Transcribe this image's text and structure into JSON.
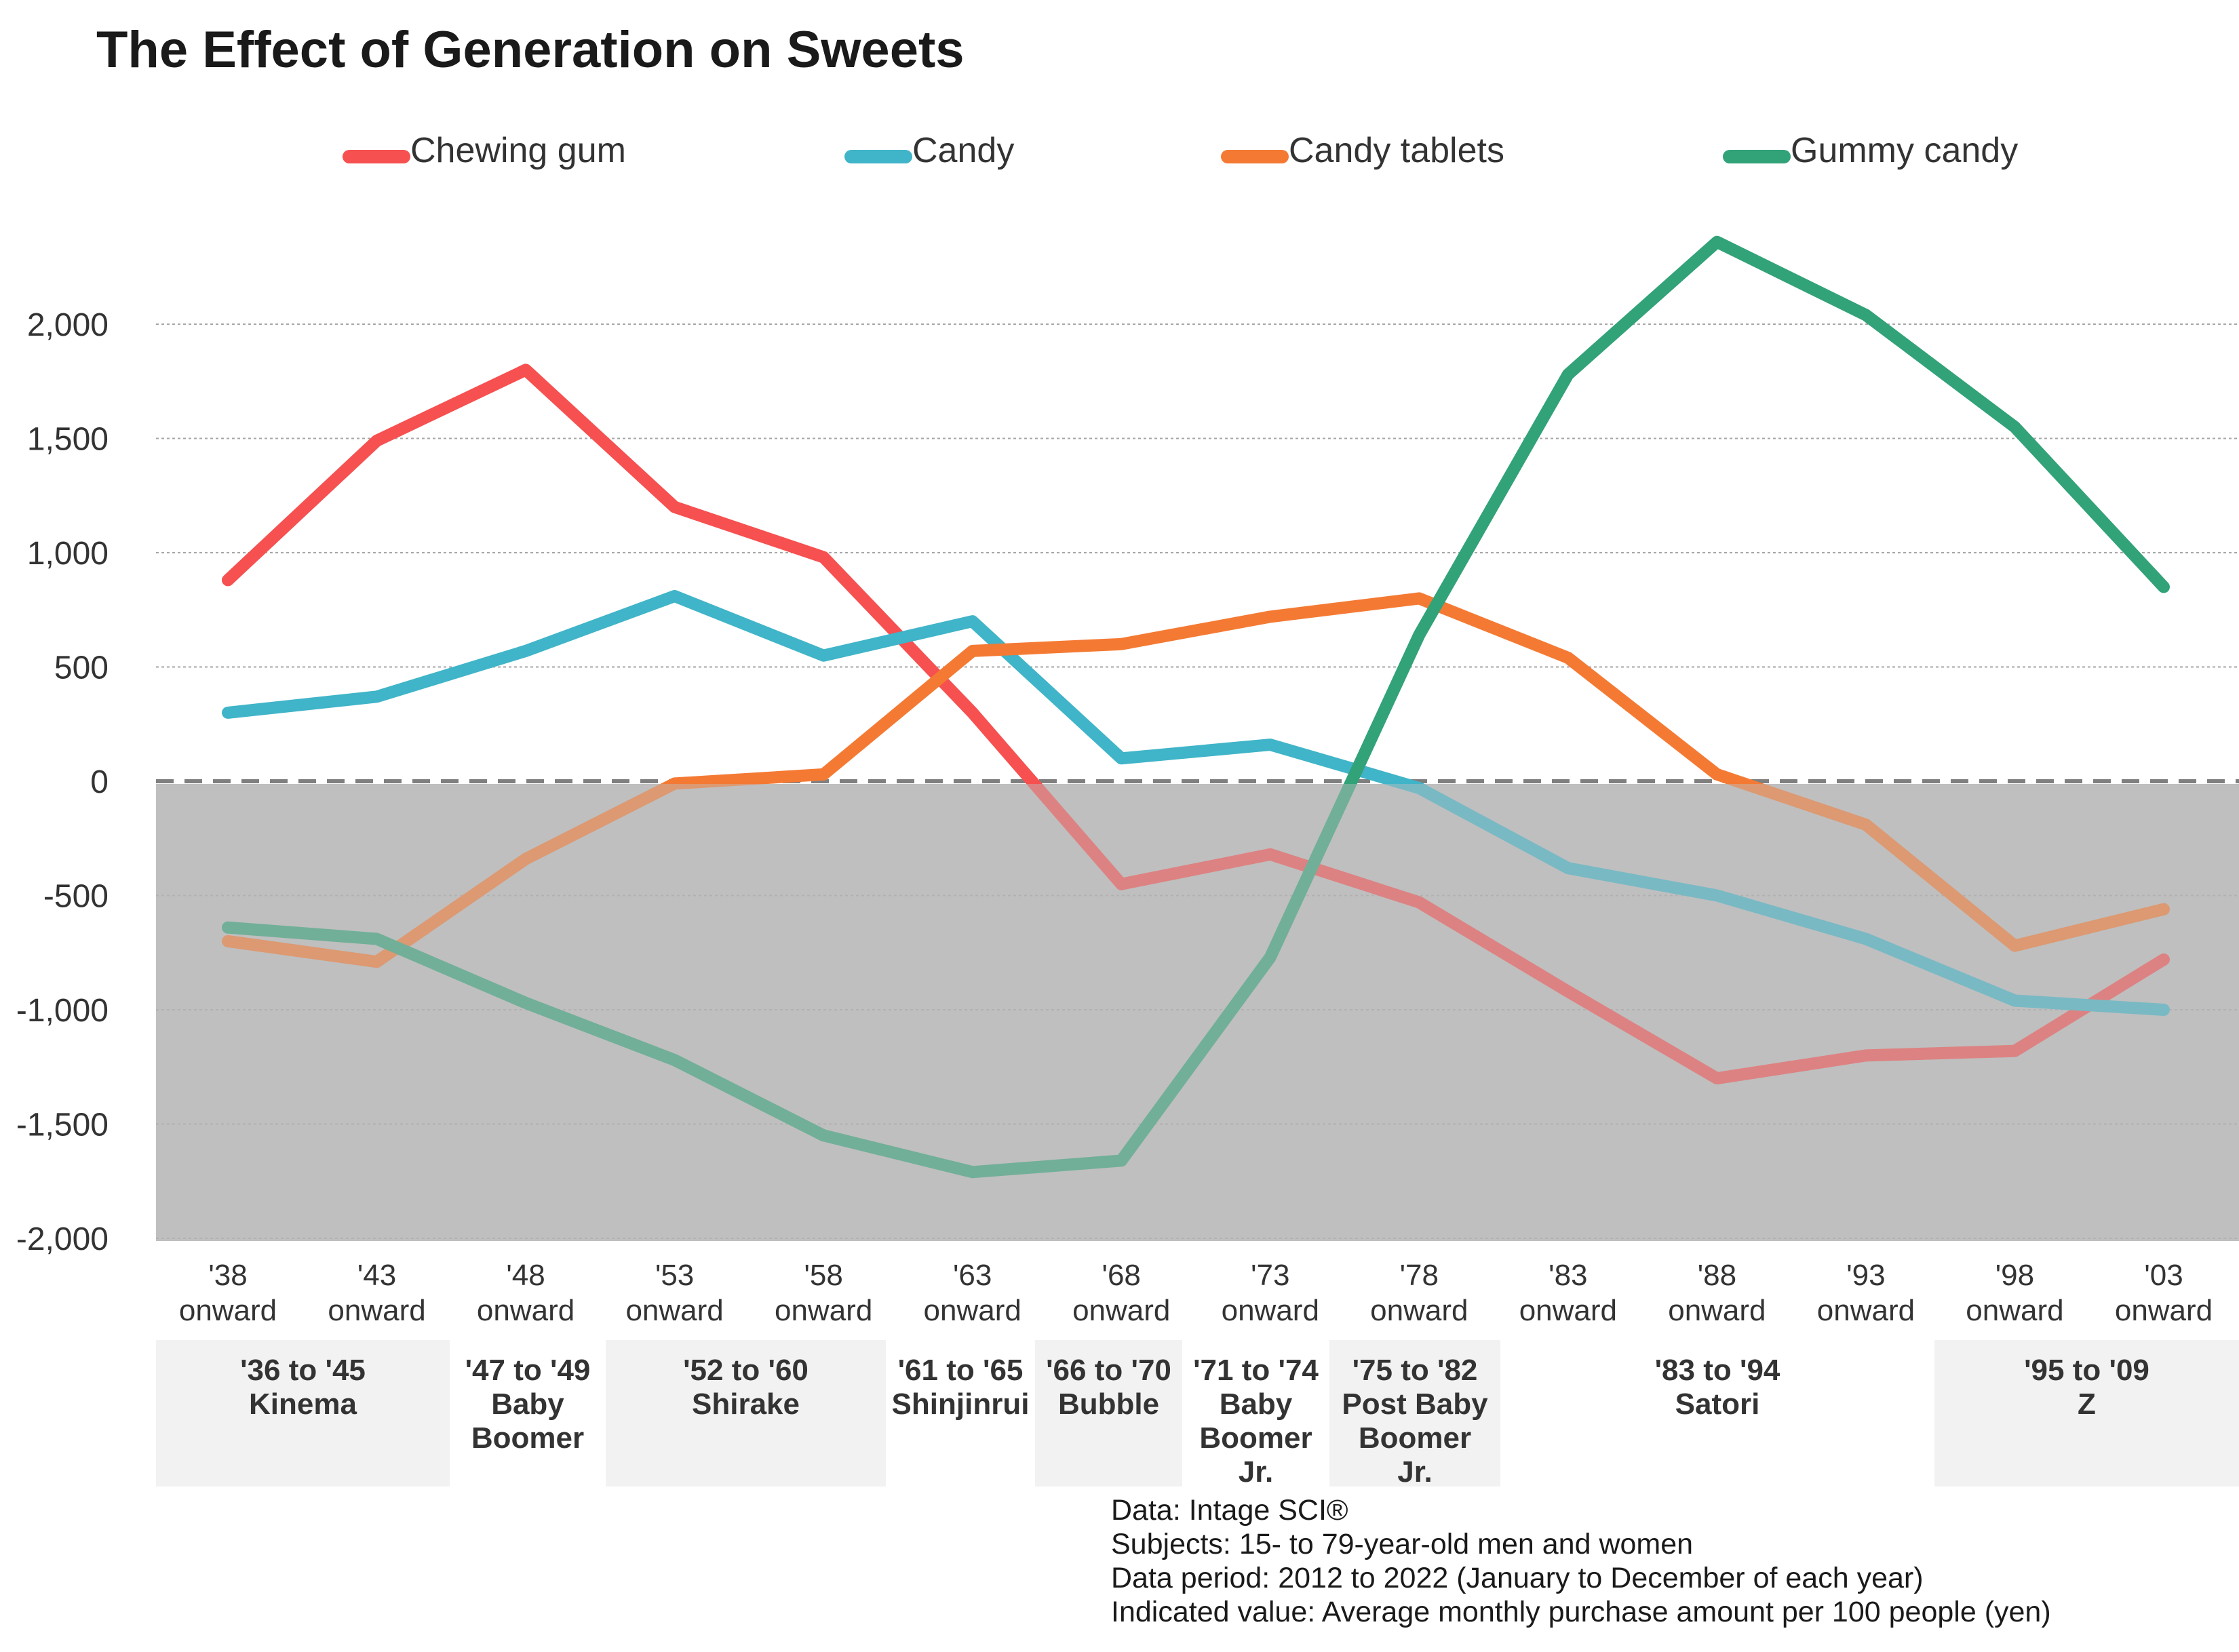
{
  "title": "The Effect of Generation on Sweets",
  "legend": [
    {
      "label": "Chewing gum",
      "color": "#f65050"
    },
    {
      "label": "Candy",
      "color": "#40b4c8"
    },
    {
      "label": "Candy tablets",
      "color": "#f47a34"
    },
    {
      "label": "Gummy candy",
      "color": "#32a278"
    }
  ],
  "chart_data": {
    "type": "line",
    "x": [
      "'38 onward",
      "'43 onward",
      "'48 onward",
      "'53 onward",
      "'58 onward",
      "'63 onward",
      "'68 onward",
      "'73 onward",
      "'78 onward",
      "'83 onward",
      "'88 onward",
      "'93 onward",
      "'98 onward",
      "'03 onward"
    ],
    "x_ticks": [
      [
        "'38",
        "onward"
      ],
      [
        "'43",
        "onward"
      ],
      [
        "'48",
        "onward"
      ],
      [
        "'53",
        "onward"
      ],
      [
        "'58",
        "onward"
      ],
      [
        "'63",
        "onward"
      ],
      [
        "'68",
        "onward"
      ],
      [
        "'73",
        "onward"
      ],
      [
        "'78",
        "onward"
      ],
      [
        "'83",
        "onward"
      ],
      [
        "'88",
        "onward"
      ],
      [
        "'93",
        "onward"
      ],
      [
        "'98",
        "onward"
      ],
      [
        "'03",
        "onward"
      ]
    ],
    "series": [
      {
        "name": "Chewing gum",
        "color": "#f65050",
        "values": [
          880,
          1490,
          1800,
          1200,
          980,
          300,
          -450,
          -320,
          -530,
          -920,
          -1300,
          -1200,
          -1180,
          -780
        ]
      },
      {
        "name": "Candy",
        "color": "#40b4c8",
        "values": [
          300,
          370,
          570,
          810,
          550,
          700,
          100,
          160,
          -30,
          -380,
          -500,
          -690,
          -960,
          -1000
        ]
      },
      {
        "name": "Candy tablets",
        "color": "#f47a34",
        "values": [
          -700,
          -790,
          -340,
          -10,
          30,
          570,
          600,
          720,
          800,
          540,
          30,
          -190,
          -720,
          -560
        ]
      },
      {
        "name": "Gummy candy",
        "color": "#32a278",
        "values": [
          -640,
          -690,
          -970,
          -1220,
          -1550,
          -1710,
          -1660,
          -770,
          640,
          1780,
          2360,
          2040,
          1550,
          850
        ]
      }
    ],
    "ylim": [
      -2000,
      2000
    ],
    "yticks": [
      2000,
      1500,
      1000,
      500,
      0,
      -500,
      -1000,
      -1500,
      -2000
    ],
    "ytick_labels": [
      "2,000",
      "1,500",
      "1,000",
      "500",
      "0",
      "-500",
      "-1,000",
      "-1,500",
      "-2,000"
    ],
    "grid": true,
    "legend_position": "top",
    "negative_region_color": "#bfbfbf"
  },
  "generations": [
    {
      "label": "'36 to '45\nKinema",
      "shaded": true
    },
    {
      "label": "'47 to '49\nBaby\nBoomer",
      "shaded": false
    },
    {
      "label": "'52 to '60\nShirake",
      "shaded": true
    },
    {
      "label": "'61 to '65\nShinjinrui",
      "shaded": false
    },
    {
      "label": "'66 to '70\nBubble",
      "shaded": true
    },
    {
      "label": "'71 to '74\nBaby\nBoomer\nJr.",
      "shaded": false
    },
    {
      "label": "'75 to '82\nPost Baby\nBoomer\nJr.",
      "shaded": true
    },
    {
      "label": "'83 to '94\nSatori",
      "shaded": false
    },
    {
      "label": "'95 to '09\nZ",
      "shaded": true
    }
  ],
  "notes": [
    "Data: Intage SCI®",
    "Subjects: 15- to 79-year-old men and women",
    "Data period: 2012 to 2022 (January to December of each year)",
    "Indicated value: Average monthly purchase amount per 100 people (yen)"
  ]
}
